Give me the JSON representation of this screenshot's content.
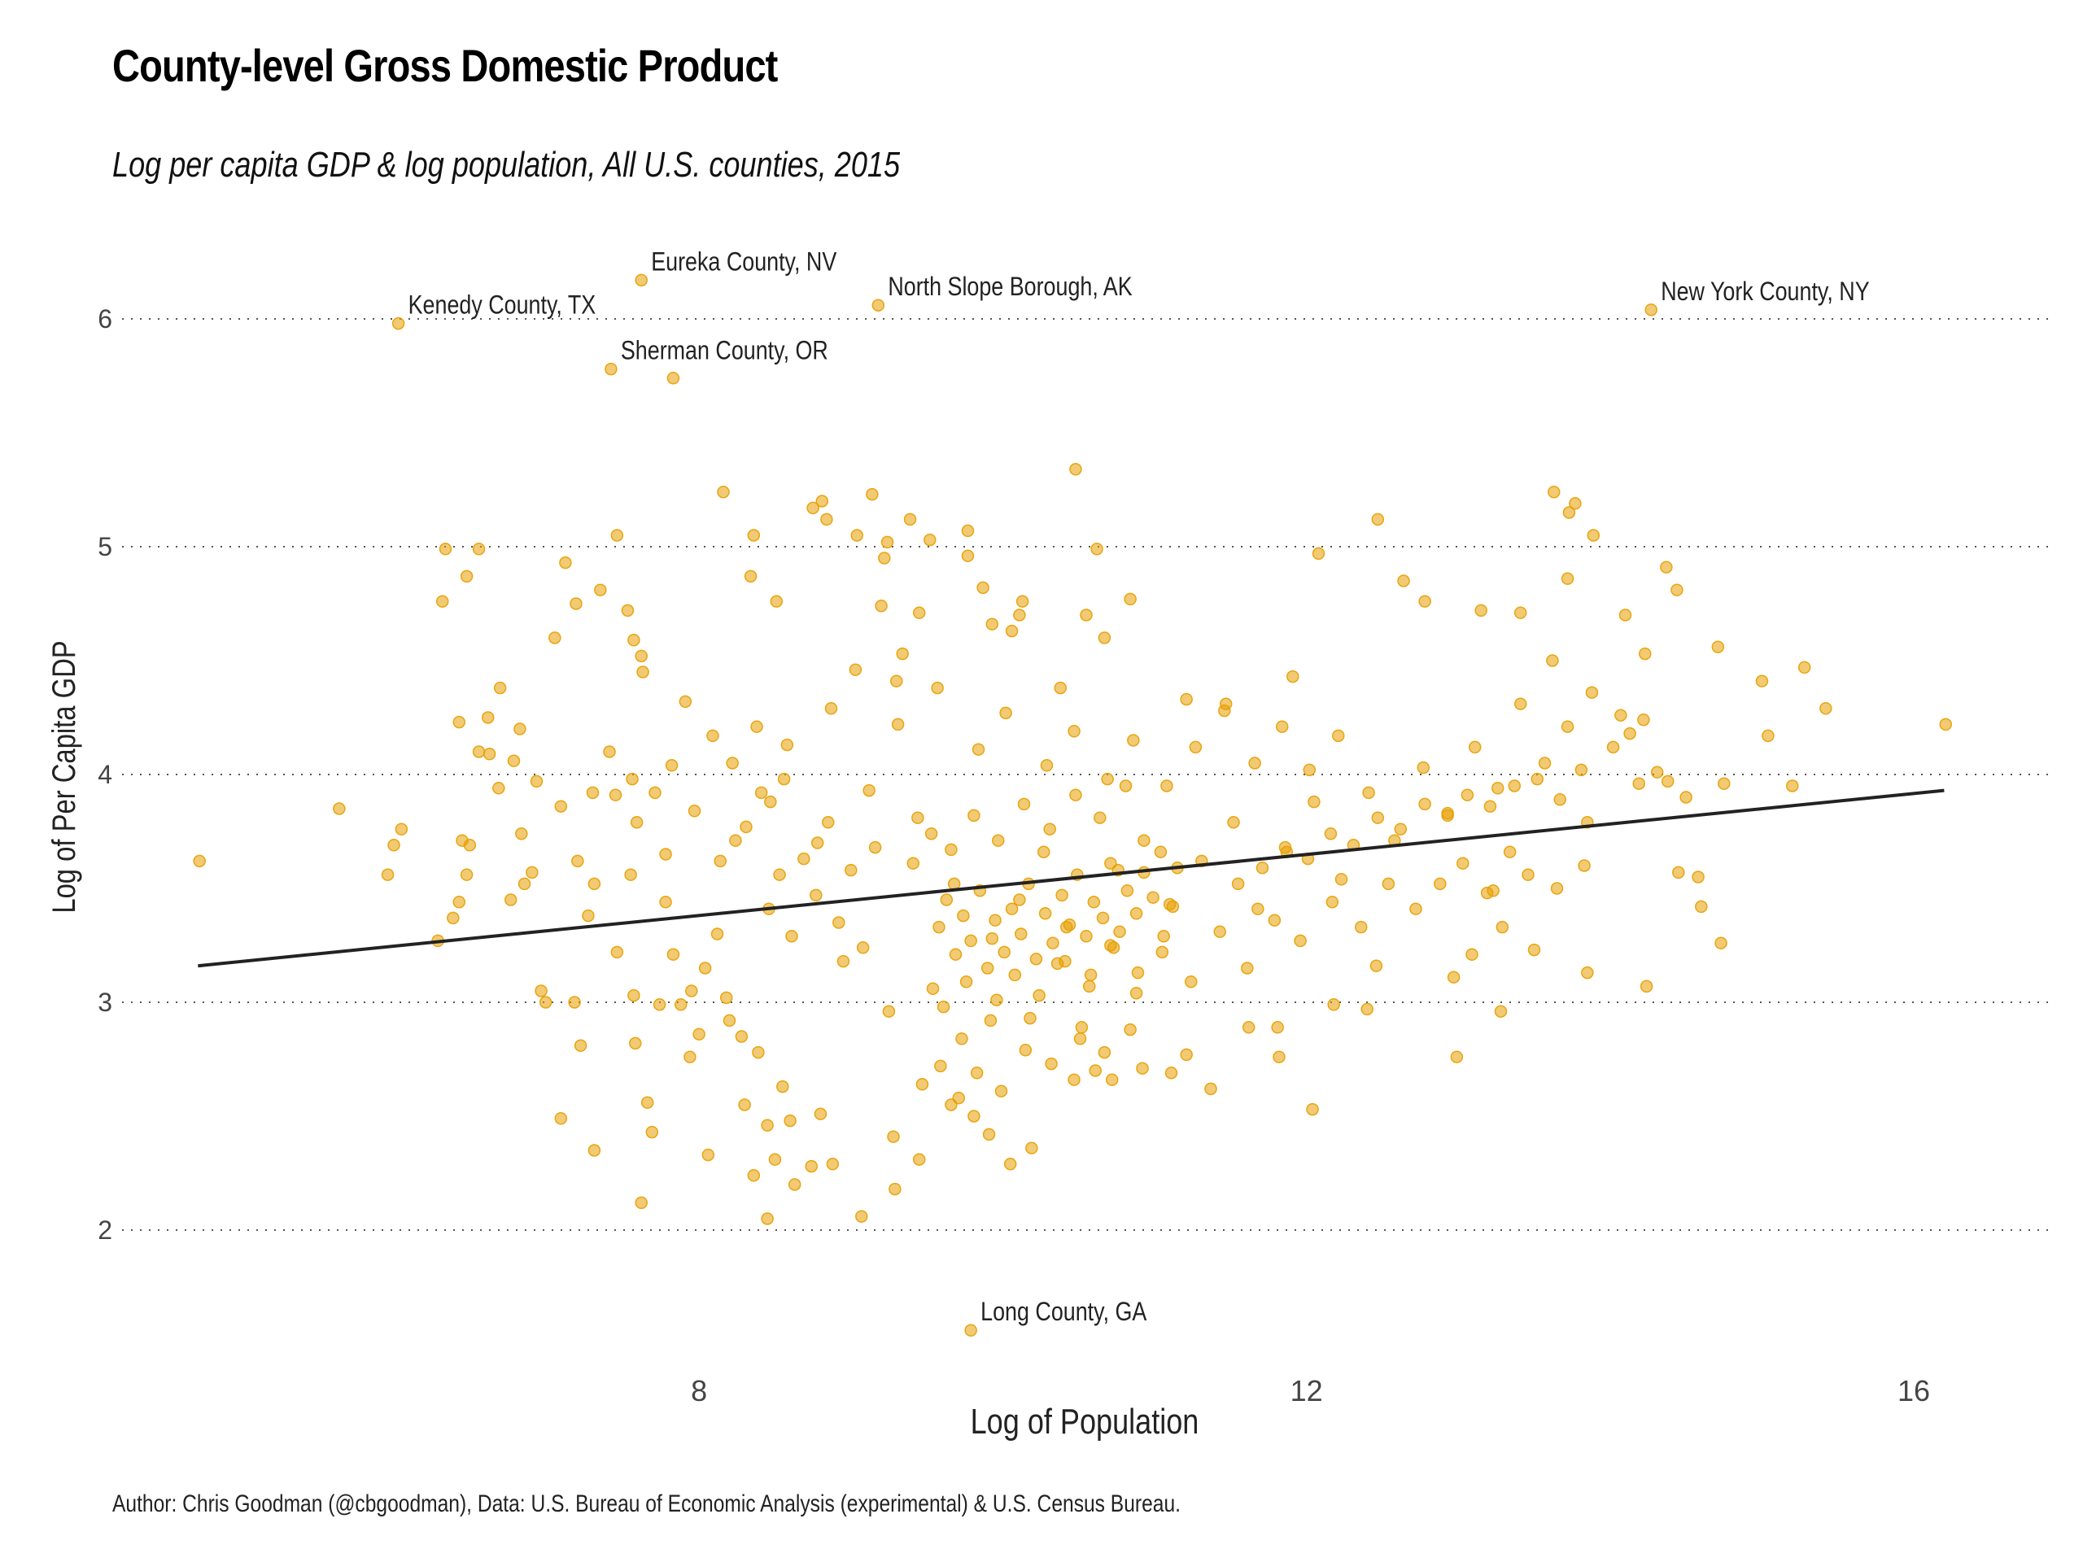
{
  "chart_data": {
    "type": "scatter",
    "title": "County-level Gross Domestic Product",
    "subtitle": "Log per capita GDP & log population, All U.S. counties, 2015",
    "xlabel": "Log of Population",
    "ylabel": "Log of Per Capita GDP",
    "caption": "Author: Chris Goodman (@cbgoodman), Data: U.S. Bureau of Economic Analysis (experimental) & U.S. Census Bureau.",
    "xlim": [
      4.2,
      16.9
    ],
    "ylim": [
      1.4,
      6.4
    ],
    "x_ticks": [
      8,
      12,
      16
    ],
    "x_tick_labels": [
      "8",
      "12",
      "16"
    ],
    "y_ticks": [
      2,
      3,
      4,
      5,
      6
    ],
    "y_tick_labels": [
      "2",
      "3",
      "4",
      "5",
      "6"
    ],
    "grid": "horizontal dotted",
    "legend": "none",
    "point_color": "#E69F00",
    "point_opacity": 0.55,
    "line_color": "#222222",
    "fit_line": {
      "x": [
        4.7,
        16.2
      ],
      "y": [
        3.16,
        3.93
      ]
    },
    "labeled_points": [
      {
        "label": "Kenedy County, TX",
        "x": 6.02,
        "y": 5.98
      },
      {
        "label": "Eureka County, NV",
        "x": 7.62,
        "y": 6.17
      },
      {
        "label": "Sherman County, OR",
        "x": 7.42,
        "y": 5.78
      },
      {
        "label": "North Slope Borough, AK",
        "x": 9.18,
        "y": 6.06
      },
      {
        "label": "New York County, NY",
        "x": 14.27,
        "y": 6.04
      },
      {
        "label": "Long County, GA",
        "x": 9.79,
        "y": 1.56
      }
    ],
    "points": [
      [
        7.83,
        5.74
      ],
      [
        4.71,
        3.62
      ],
      [
        5.63,
        3.85
      ],
      [
        5.99,
        3.69
      ],
      [
        6.04,
        3.76
      ],
      [
        5.95,
        3.56
      ],
      [
        6.28,
        3.27
      ],
      [
        6.33,
        4.99
      ],
      [
        6.31,
        4.76
      ],
      [
        6.47,
        4.87
      ],
      [
        6.55,
        4.99
      ],
      [
        6.55,
        4.1
      ],
      [
        6.42,
        4.23
      ],
      [
        6.44,
        3.71
      ],
      [
        6.49,
        3.69
      ],
      [
        6.47,
        3.56
      ],
      [
        6.42,
        3.44
      ],
      [
        6.38,
        3.37
      ],
      [
        6.69,
        4.38
      ],
      [
        6.62,
        4.09
      ],
      [
        6.82,
        4.2
      ],
      [
        6.83,
        3.74
      ],
      [
        6.85,
        3.52
      ],
      [
        6.96,
        3.05
      ],
      [
        6.99,
        3.0
      ],
      [
        7.09,
        2.49
      ],
      [
        7.22,
        2.81
      ],
      [
        7.18,
        3.0
      ],
      [
        7.31,
        2.35
      ],
      [
        7.31,
        3.52
      ],
      [
        7.45,
        3.91
      ],
      [
        7.3,
        3.92
      ],
      [
        7.41,
        4.1
      ],
      [
        7.35,
        4.81
      ],
      [
        7.12,
        4.93
      ],
      [
        7.19,
        4.75
      ],
      [
        7.05,
        4.6
      ],
      [
        7.46,
        5.05
      ],
      [
        7.53,
        4.72
      ],
      [
        7.57,
        4.59
      ],
      [
        7.62,
        4.52
      ],
      [
        7.63,
        4.45
      ],
      [
        7.56,
        3.98
      ],
      [
        7.59,
        3.79
      ],
      [
        7.55,
        3.56
      ],
      [
        7.57,
        3.03
      ],
      [
        7.58,
        2.82
      ],
      [
        7.66,
        2.56
      ],
      [
        7.69,
        2.43
      ],
      [
        7.62,
        2.12
      ],
      [
        7.71,
        3.92
      ],
      [
        7.78,
        3.65
      ],
      [
        7.78,
        3.44
      ],
      [
        7.83,
        3.21
      ],
      [
        7.88,
        2.99
      ],
      [
        7.95,
        3.05
      ],
      [
        8.04,
        3.15
      ],
      [
        8.12,
        3.3
      ],
      [
        8.2,
        2.92
      ],
      [
        8.3,
        2.55
      ],
      [
        8.36,
        2.24
      ],
      [
        8.45,
        2.46
      ],
      [
        8.5,
        2.31
      ],
      [
        8.45,
        2.05
      ],
      [
        8.06,
        2.33
      ],
      [
        8.16,
        5.24
      ],
      [
        8.36,
        5.05
      ],
      [
        8.34,
        4.87
      ],
      [
        8.51,
        4.76
      ],
      [
        8.75,
        5.17
      ],
      [
        8.81,
        5.2
      ],
      [
        8.84,
        5.12
      ],
      [
        9.14,
        5.23
      ],
      [
        9.04,
        5.05
      ],
      [
        9.24,
        5.02
      ],
      [
        9.39,
        5.12
      ],
      [
        9.52,
        5.03
      ],
      [
        9.22,
        4.95
      ],
      [
        9.2,
        4.74
      ],
      [
        9.45,
        4.71
      ],
      [
        9.34,
        4.53
      ],
      [
        9.3,
        4.41
      ],
      [
        9.77,
        5.07
      ],
      [
        9.77,
        4.96
      ],
      [
        9.87,
        4.82
      ],
      [
        9.93,
        4.66
      ],
      [
        10.13,
        4.76
      ],
      [
        10.06,
        4.63
      ],
      [
        10.11,
        4.7
      ],
      [
        10.48,
        5.34
      ],
      [
        10.62,
        4.99
      ],
      [
        10.55,
        4.7
      ],
      [
        10.67,
        4.6
      ],
      [
        10.84,
        4.77
      ],
      [
        11.21,
        4.33
      ],
      [
        10.38,
        4.38
      ],
      [
        11.47,
        4.31
      ],
      [
        11.91,
        4.43
      ],
      [
        12.08,
        4.97
      ],
      [
        12.47,
        5.12
      ],
      [
        12.64,
        4.85
      ],
      [
        12.78,
        4.76
      ],
      [
        13.15,
        4.72
      ],
      [
        13.41,
        4.71
      ],
      [
        13.63,
        5.24
      ],
      [
        13.73,
        5.15
      ],
      [
        13.77,
        5.19
      ],
      [
        13.89,
        5.05
      ],
      [
        13.72,
        4.86
      ],
      [
        13.62,
        4.5
      ],
      [
        14.1,
        4.7
      ],
      [
        14.37,
        4.91
      ],
      [
        14.44,
        4.81
      ],
      [
        14.71,
        4.56
      ],
      [
        15.0,
        4.41
      ],
      [
        15.28,
        4.47
      ],
      [
        15.42,
        4.29
      ],
      [
        15.04,
        4.17
      ],
      [
        16.21,
        4.22
      ],
      [
        15.2,
        3.95
      ],
      [
        14.23,
        4.53
      ],
      [
        14.22,
        4.24
      ],
      [
        14.24,
        3.07
      ],
      [
        14.45,
        3.57
      ],
      [
        14.58,
        3.55
      ],
      [
        14.6,
        3.42
      ],
      [
        14.73,
        3.26
      ],
      [
        14.75,
        3.96
      ],
      [
        14.38,
        3.97
      ],
      [
        14.5,
        3.9
      ],
      [
        14.19,
        3.96
      ],
      [
        14.31,
        4.01
      ],
      [
        14.07,
        4.26
      ],
      [
        13.85,
        3.79
      ],
      [
        13.83,
        3.6
      ],
      [
        13.85,
        3.13
      ],
      [
        13.46,
        3.56
      ],
      [
        13.65,
        3.5
      ],
      [
        13.5,
        3.23
      ],
      [
        13.23,
        3.49
      ],
      [
        13.28,
        2.96
      ],
      [
        13.29,
        3.33
      ],
      [
        12.97,
        3.11
      ],
      [
        12.99,
        2.76
      ],
      [
        13.09,
        3.21
      ],
      [
        12.46,
        3.16
      ],
      [
        12.4,
        2.97
      ],
      [
        12.18,
        2.99
      ],
      [
        12.04,
        2.53
      ],
      [
        11.82,
        2.76
      ],
      [
        11.81,
        2.89
      ],
      [
        11.62,
        2.89
      ],
      [
        11.37,
        2.62
      ],
      [
        11.21,
        2.77
      ],
      [
        11.11,
        2.69
      ],
      [
        10.92,
        2.71
      ],
      [
        10.72,
        2.66
      ],
      [
        10.61,
        2.7
      ],
      [
        10.47,
        2.66
      ],
      [
        10.19,
        2.36
      ],
      [
        10.05,
        2.29
      ],
      [
        9.91,
        2.42
      ],
      [
        9.81,
        2.5
      ],
      [
        9.66,
        2.55
      ],
      [
        9.45,
        2.31
      ],
      [
        9.29,
        2.18
      ],
      [
        9.28,
        2.41
      ],
      [
        9.07,
        2.06
      ],
      [
        8.88,
        2.29
      ],
      [
        8.8,
        2.51
      ],
      [
        8.74,
        2.28
      ],
      [
        8.63,
        2.2
      ],
      [
        8.6,
        2.48
      ],
      [
        8.55,
        2.63
      ],
      [
        8.39,
        2.78
      ],
      [
        8.28,
        2.85
      ],
      [
        8.18,
        3.02
      ],
      [
        8.0,
        2.86
      ],
      [
        7.94,
        2.76
      ],
      [
        7.74,
        2.99
      ],
      [
        7.46,
        3.22
      ],
      [
        7.27,
        3.38
      ],
      [
        7.2,
        3.62
      ],
      [
        7.09,
        3.86
      ],
      [
        6.93,
        3.97
      ],
      [
        6.9,
        3.57
      ],
      [
        6.76,
        3.45
      ],
      [
        6.68,
        3.94
      ],
      [
        6.61,
        4.25
      ],
      [
        6.78,
        4.06
      ],
      [
        8.78,
        3.7
      ],
      [
        9.12,
        3.93
      ],
      [
        9.44,
        3.81
      ],
      [
        9.68,
        3.52
      ],
      [
        9.93,
        3.28
      ],
      [
        10.11,
        3.45
      ],
      [
        10.27,
        3.66
      ],
      [
        10.42,
        3.33
      ],
      [
        10.58,
        3.12
      ],
      [
        10.76,
        3.58
      ],
      [
        10.93,
        3.71
      ],
      [
        11.12,
        3.42
      ],
      [
        11.31,
        3.62
      ],
      [
        11.52,
        3.79
      ],
      [
        11.68,
        3.41
      ],
      [
        11.87,
        3.66
      ],
      [
        12.05,
        3.88
      ],
      [
        12.23,
        3.54
      ],
      [
        12.41,
        3.92
      ],
      [
        12.58,
        3.71
      ],
      [
        12.77,
        4.03
      ],
      [
        12.93,
        3.82
      ],
      [
        13.11,
        4.12
      ],
      [
        13.26,
        3.94
      ],
      [
        13.41,
        4.31
      ],
      [
        13.57,
        4.05
      ],
      [
        13.72,
        4.21
      ],
      [
        13.88,
        4.36
      ],
      [
        14.02,
        4.12
      ],
      [
        14.13,
        4.18
      ],
      [
        8.95,
        3.18
      ],
      [
        9.25,
        2.96
      ],
      [
        9.54,
        3.06
      ],
      [
        9.73,
        2.84
      ],
      [
        9.96,
        3.01
      ],
      [
        10.18,
        2.93
      ],
      [
        10.36,
        3.17
      ],
      [
        10.52,
        2.89
      ],
      [
        10.71,
        3.25
      ],
      [
        10.88,
        3.04
      ],
      [
        11.05,
        3.22
      ],
      [
        11.24,
        3.09
      ],
      [
        11.43,
        3.31
      ],
      [
        11.61,
        3.15
      ],
      [
        11.79,
        3.36
      ],
      [
        11.96,
        3.27
      ],
      [
        12.17,
        3.44
      ],
      [
        12.36,
        3.33
      ],
      [
        12.54,
        3.52
      ],
      [
        12.72,
        3.41
      ],
      [
        8.24,
        3.71
      ],
      [
        8.41,
        3.92
      ],
      [
        8.58,
        4.13
      ],
      [
        8.87,
        4.29
      ],
      [
        9.03,
        4.46
      ],
      [
        9.31,
        4.22
      ],
      [
        9.57,
        4.38
      ],
      [
        9.84,
        4.11
      ],
      [
        10.02,
        4.27
      ],
      [
        10.29,
        4.04
      ],
      [
        10.47,
        4.19
      ],
      [
        10.69,
        3.98
      ],
      [
        10.86,
        4.15
      ],
      [
        11.08,
        3.95
      ],
      [
        11.27,
        4.12
      ],
      [
        11.46,
        4.28
      ],
      [
        11.66,
        4.05
      ],
      [
        11.84,
        4.21
      ],
      [
        12.02,
        4.02
      ],
      [
        12.21,
        4.17
      ],
      [
        9.58,
        3.33
      ],
      [
        9.63,
        3.45
      ],
      [
        9.69,
        3.21
      ],
      [
        9.74,
        3.38
      ],
      [
        9.79,
        3.27
      ],
      [
        9.85,
        3.49
      ],
      [
        9.9,
        3.15
      ],
      [
        9.95,
        3.36
      ],
      [
        10.01,
        3.22
      ],
      [
        10.06,
        3.41
      ],
      [
        10.12,
        3.3
      ],
      [
        10.17,
        3.52
      ],
      [
        10.22,
        3.19
      ],
      [
        10.28,
        3.39
      ],
      [
        10.33,
        3.26
      ],
      [
        10.39,
        3.47
      ],
      [
        10.44,
        3.34
      ],
      [
        10.49,
        3.56
      ],
      [
        10.55,
        3.29
      ],
      [
        10.6,
        3.44
      ],
      [
        10.66,
        3.37
      ],
      [
        10.71,
        3.61
      ],
      [
        10.77,
        3.31
      ],
      [
        10.82,
        3.49
      ],
      [
        10.88,
        3.39
      ],
      [
        10.93,
        3.57
      ],
      [
        10.99,
        3.46
      ],
      [
        11.04,
        3.66
      ],
      [
        11.1,
        3.43
      ],
      [
        11.15,
        3.59
      ],
      [
        9.61,
        2.98
      ],
      [
        9.76,
        3.09
      ],
      [
        9.92,
        2.92
      ],
      [
        10.08,
        3.12
      ],
      [
        10.24,
        3.03
      ],
      [
        10.41,
        3.18
      ],
      [
        10.57,
        3.07
      ],
      [
        10.73,
        3.24
      ],
      [
        10.89,
        3.13
      ],
      [
        11.06,
        3.29
      ],
      [
        9.41,
        3.61
      ],
      [
        9.53,
        3.74
      ],
      [
        9.66,
        3.67
      ],
      [
        9.81,
        3.82
      ],
      [
        9.97,
        3.71
      ],
      [
        10.14,
        3.87
      ],
      [
        10.31,
        3.76
      ],
      [
        10.48,
        3.91
      ],
      [
        10.64,
        3.81
      ],
      [
        10.81,
        3.95
      ],
      [
        8.46,
        3.41
      ],
      [
        8.53,
        3.56
      ],
      [
        8.61,
        3.29
      ],
      [
        8.69,
        3.63
      ],
      [
        8.77,
        3.47
      ],
      [
        8.85,
        3.79
      ],
      [
        8.92,
        3.35
      ],
      [
        9.0,
        3.58
      ],
      [
        9.08,
        3.24
      ],
      [
        9.16,
        3.68
      ],
      [
        11.55,
        3.52
      ],
      [
        11.71,
        3.59
      ],
      [
        11.86,
        3.68
      ],
      [
        12.01,
        3.63
      ],
      [
        12.16,
        3.74
      ],
      [
        12.31,
        3.69
      ],
      [
        12.47,
        3.81
      ],
      [
        12.62,
        3.76
      ],
      [
        12.78,
        3.87
      ],
      [
        12.93,
        3.83
      ],
      [
        13.06,
        3.91
      ],
      [
        13.21,
        3.86
      ],
      [
        13.37,
        3.95
      ],
      [
        13.52,
        3.98
      ],
      [
        13.67,
        3.89
      ],
      [
        13.81,
        4.02
      ],
      [
        12.88,
        3.52
      ],
      [
        13.03,
        3.61
      ],
      [
        13.19,
        3.48
      ],
      [
        13.34,
        3.66
      ],
      [
        7.82,
        4.04
      ],
      [
        7.91,
        4.32
      ],
      [
        7.97,
        3.84
      ],
      [
        8.09,
        4.17
      ],
      [
        8.14,
        3.62
      ],
      [
        8.22,
        4.05
      ],
      [
        8.31,
        3.77
      ],
      [
        8.38,
        4.21
      ],
      [
        8.47,
        3.88
      ],
      [
        8.56,
        3.98
      ],
      [
        9.47,
        2.64
      ],
      [
        9.59,
        2.72
      ],
      [
        9.71,
        2.58
      ],
      [
        9.83,
        2.69
      ],
      [
        9.99,
        2.61
      ],
      [
        10.15,
        2.79
      ],
      [
        10.32,
        2.73
      ],
      [
        10.51,
        2.84
      ],
      [
        10.67,
        2.78
      ],
      [
        10.84,
        2.88
      ]
    ]
  }
}
